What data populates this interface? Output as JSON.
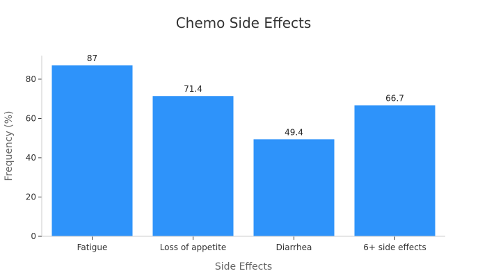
{
  "chart_data": {
    "type": "bar",
    "title": "Chemo Side Effects",
    "xlabel": "Side Effects",
    "ylabel": "Frequency (%)",
    "categories": [
      "Fatigue",
      "Loss of appetite",
      "Diarrhea",
      "6+ side effects"
    ],
    "values": [
      87,
      71.4,
      49.4,
      66.7
    ],
    "value_labels": [
      "87",
      "71.4",
      "49.4",
      "66.7"
    ],
    "ylim": [
      0,
      92
    ],
    "yticks": [
      0,
      20,
      40,
      60,
      80
    ],
    "ytick_labels": [
      "0",
      "20",
      "40",
      "60",
      "80"
    ],
    "grid": false,
    "bar_color": "#2e93fa",
    "axis_color": "#cccccc",
    "tick_color": "#333333"
  }
}
